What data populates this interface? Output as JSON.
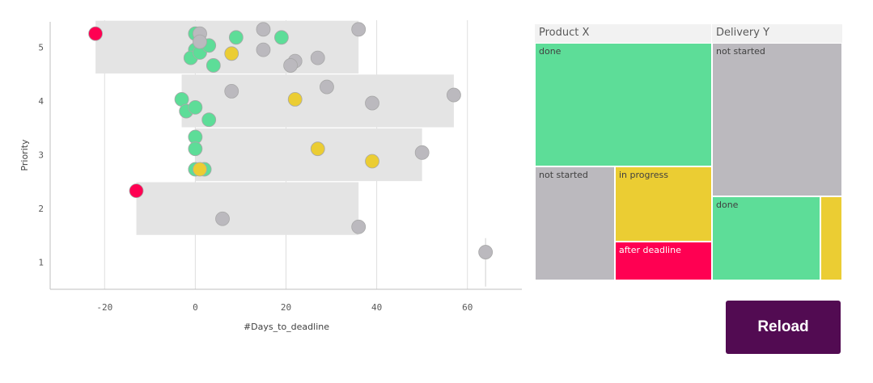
{
  "colors": {
    "done": "#5ddd98",
    "not_started": "#bbb9be",
    "in_progress": "#ebcd33",
    "after_deadline": "#ff0052",
    "band": "#e4e4e4",
    "button": "#520b52"
  },
  "chart_data": [
    {
      "type": "scatter",
      "xlabel": "#Days_to_deadline",
      "ylabel": "Priority",
      "xlim": [
        -32,
        72
      ],
      "ylim": [
        0.5,
        5.5
      ],
      "x_ticks": [
        -20,
        0,
        20,
        40,
        60
      ],
      "y_ticks": [
        1,
        2,
        3,
        4,
        5
      ],
      "grid": "vertical",
      "bands": [
        {
          "priority": 5,
          "x_min": -22,
          "x_max": 36
        },
        {
          "priority": 4,
          "x_min": -3,
          "x_max": 57
        },
        {
          "priority": 3,
          "x_min": 0,
          "x_max": 50
        },
        {
          "priority": 2,
          "x_min": -13,
          "x_max": 36
        },
        {
          "priority": 1,
          "x_min": 64,
          "x_max": 64
        }
      ],
      "series": [
        {
          "status": "done",
          "points": [
            [
              0,
              5.25
            ],
            [
              0,
              4.95
            ],
            [
              -1,
              4.8
            ],
            [
              1,
              4.9
            ],
            [
              3,
              5.03
            ],
            [
              4,
              4.66
            ],
            [
              9,
              5.18
            ],
            [
              19,
              5.18
            ],
            [
              -3,
              4.03
            ],
            [
              -2,
              3.81
            ],
            [
              0,
              3.88
            ],
            [
              3,
              3.65
            ],
            [
              0,
              3.33
            ],
            [
              0,
              3.11
            ],
            [
              0,
              2.73
            ],
            [
              2,
              2.73
            ]
          ]
        },
        {
          "status": "not_started",
          "points": [
            [
              1,
              5.25
            ],
            [
              1,
              5.1
            ],
            [
              15,
              5.33
            ],
            [
              15,
              4.95
            ],
            [
              22,
              4.74
            ],
            [
              21,
              4.66
            ],
            [
              27,
              4.8
            ],
            [
              36,
              5.33
            ],
            [
              8,
              4.18
            ],
            [
              29,
              4.26
            ],
            [
              39,
              3.96
            ],
            [
              57,
              4.11
            ],
            [
              50,
              3.04
            ],
            [
              6,
              1.81
            ],
            [
              36,
              1.66
            ],
            [
              64,
              1.19
            ]
          ]
        },
        {
          "status": "in_progress",
          "points": [
            [
              8,
              4.88
            ],
            [
              22,
              4.03
            ],
            [
              27,
              3.11
            ],
            [
              39,
              2.88
            ],
            [
              1,
              2.73
            ]
          ]
        },
        {
          "status": "after_deadline",
          "points": [
            [
              -22,
              5.25
            ],
            [
              -13,
              2.33
            ]
          ]
        }
      ]
    },
    {
      "type": "treemap",
      "groups": [
        {
          "name": "Product X",
          "cells": [
            {
              "label": "done",
              "value": 10,
              "status": "done"
            },
            {
              "label": "not started",
              "value": 5,
              "status": "not_started"
            },
            {
              "label": "in progress",
              "value": 4,
              "status": "in_progress"
            },
            {
              "label": "after deadline",
              "value": 2,
              "status": "after_deadline"
            }
          ]
        },
        {
          "name": "Delivery Y",
          "cells": [
            {
              "label": "not started",
              "value": 6,
              "status": "not_started"
            },
            {
              "label": "done",
              "value": 3,
              "status": "done"
            },
            {
              "label": "",
              "value": 0.5,
              "status": "in_progress"
            }
          ]
        }
      ]
    }
  ],
  "button": {
    "label": "Reload"
  }
}
